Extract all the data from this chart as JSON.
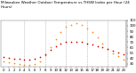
{
  "title_line1": "Milwaukee Weather Outdoor Temperature",
  "title_line2": "vs THSW Index",
  "title_line3": "per Hour",
  "title_line4": "(24 Hours)",
  "hours": [
    0,
    1,
    2,
    3,
    4,
    5,
    6,
    7,
    8,
    9,
    10,
    11,
    12,
    13,
    14,
    15,
    16,
    17,
    18,
    19,
    20,
    21,
    22,
    23
  ],
  "temp_f": [
    42,
    41,
    40,
    39,
    38,
    38,
    39,
    42,
    48,
    55,
    62,
    67,
    70,
    71,
    71,
    70,
    68,
    66,
    63,
    60,
    57,
    54,
    51,
    48
  ],
  "thsw": [
    35,
    33,
    31,
    30,
    28,
    28,
    30,
    35,
    46,
    60,
    75,
    88,
    98,
    102,
    104,
    101,
    95,
    88,
    78,
    68,
    58,
    50,
    44,
    38
  ],
  "temp_color": "#cc0000",
  "thsw_color": "#ff8800",
  "dot_color_dark": "#222222",
  "bg_color": "#ffffff",
  "grid_color": "#999999",
  "ylim": [
    25,
    110
  ],
  "yticks_right": [
    30,
    40,
    50,
    60,
    70,
    80,
    90,
    100,
    110
  ],
  "vgrid_positions": [
    4,
    8,
    12,
    16,
    20
  ],
  "marker_size": 1.5,
  "title_fontsize": 3.0,
  "tick_fontsize": 2.8
}
